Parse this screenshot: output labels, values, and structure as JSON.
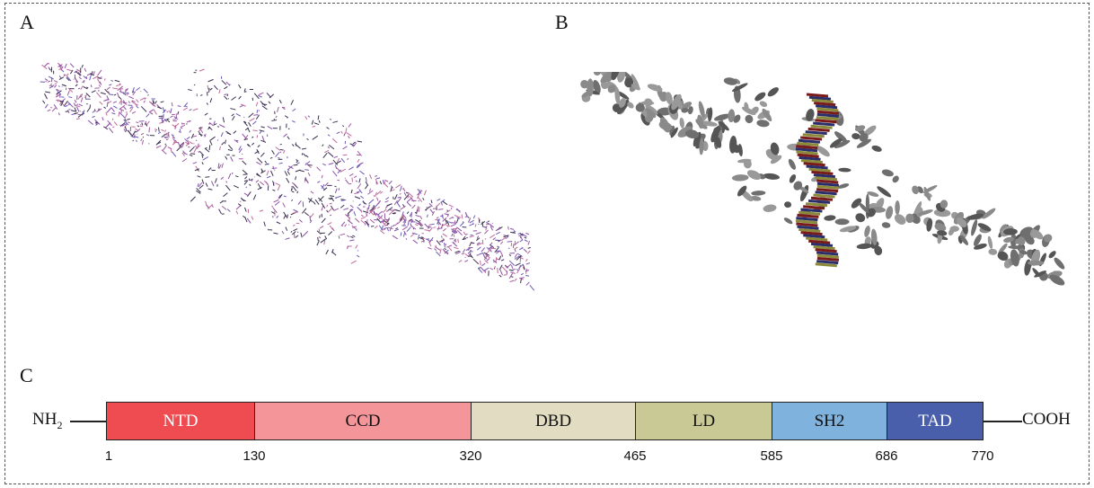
{
  "panels": {
    "a": "A",
    "b": "B",
    "c": "C"
  },
  "domain_map": {
    "n_terminus": "NH",
    "n_terminus_sub": "2",
    "c_terminus": "COOH",
    "start": "1",
    "domains": [
      {
        "name": "NTD",
        "start": 1,
        "end": 130,
        "end_label": "130",
        "color": "#ef4c52",
        "text_color": "#ffffff"
      },
      {
        "name": "CCD",
        "start": 130,
        "end": 320,
        "end_label": "320",
        "color": "#f4959a",
        "text_color": "#111111"
      },
      {
        "name": "DBD",
        "start": 320,
        "end": 465,
        "end_label": "465",
        "color": "#e2dcc3",
        "text_color": "#111111"
      },
      {
        "name": "LD",
        "start": 465,
        "end": 585,
        "end_label": "585",
        "color": "#c9c996",
        "text_color": "#111111"
      },
      {
        "name": "SH2",
        "start": 585,
        "end": 686,
        "end_label": "686",
        "color": "#80b2de",
        "text_color": "#111111"
      },
      {
        "name": "TAD",
        "start": 686,
        "end": 770,
        "end_label": "770",
        "color": "#4a5fab",
        "text_color": "#ffffff"
      }
    ]
  },
  "colors": {
    "stick_model": "#8a4fa8",
    "ribbon_model": "#7a7a7a",
    "dna": "#7a1a1a"
  }
}
